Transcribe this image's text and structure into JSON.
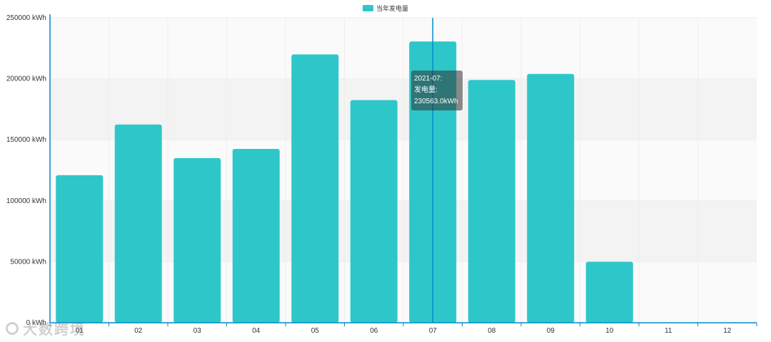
{
  "colors": {
    "bar": "#2ec7c9",
    "axis": "#008acd",
    "grid": "#eeeeee",
    "band_a": "#fafafa",
    "band_b": "#f3f3f3"
  },
  "legend": {
    "label": "当年发电量",
    "color": "#2ec7c9"
  },
  "tooltip": {
    "line1": "2021-07:",
    "line2": "发电量:",
    "line3": "230563.0kWh"
  },
  "watermark": {
    "text": "大数跨境"
  },
  "chart_data": {
    "type": "bar",
    "categories": [
      "01",
      "02",
      "03",
      "04",
      "05",
      "06",
      "07",
      "08",
      "09",
      "10",
      "11",
      "12"
    ],
    "series": [
      {
        "name": "当年发电量",
        "values": [
          121000,
          162500,
          135000,
          142500,
          220000,
          182500,
          230563,
          199000,
          204000,
          50000,
          0,
          0
        ]
      }
    ],
    "ylim": [
      0,
      250000
    ],
    "y_ticks": [
      0,
      50000,
      100000,
      150000,
      200000,
      250000
    ],
    "y_tick_labels": [
      "0 kWh",
      "50000 kWh",
      "100000 kWh",
      "150000 kWh",
      "200000 kWh",
      "250000 kWh"
    ],
    "highlight_category": "07",
    "grid": true,
    "legend_position": "top-center"
  }
}
